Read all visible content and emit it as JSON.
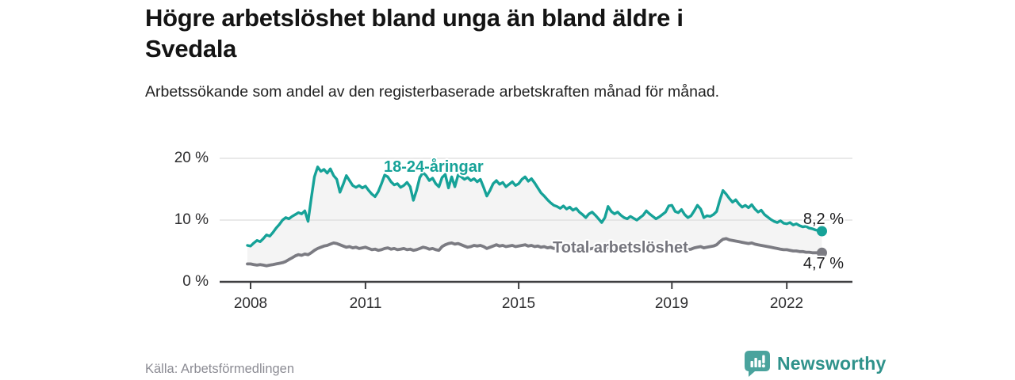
{
  "header": {
    "title": "Högre arbetslöshet bland unga än bland äldre i Svedala",
    "subtitle": "Arbetssökande som andel av den registerbaserade arbetskraften månad för månad."
  },
  "chart_data": {
    "type": "line",
    "title": "Högre arbetslöshet bland unga än bland äldre i Svedala",
    "subtitle": "Arbetssökande som andel av den registerbaserade arbetskraften månad för månad.",
    "x_unit": "month",
    "x_start": "2007-12",
    "x_end": "2022-12",
    "grid": "horizontal",
    "legend_position": "inline-labels",
    "fill_between_color": "#f4f4f4",
    "axis_color": "#3f3f41",
    "gridline_color": "#dcdcdc",
    "x_axis": {
      "ticks": [
        {
          "label": "2008",
          "year": 2008
        },
        {
          "label": "2011",
          "year": 2011
        },
        {
          "label": "2015",
          "year": 2015
        },
        {
          "label": "2019",
          "year": 2019
        },
        {
          "label": "2022",
          "year": 2022
        }
      ]
    },
    "y_axis": {
      "range": [
        0,
        21
      ],
      "ticks": [
        {
          "label": "20 %",
          "value": 20
        },
        {
          "label": "10 %",
          "value": 10
        },
        {
          "label": "0 %",
          "value": 0
        }
      ]
    },
    "series": [
      {
        "name": "18-24-åringar",
        "color": "#16a298",
        "end_label": "8,2 %",
        "end_value": 8.2,
        "values": [
          5.9,
          5.8,
          6.3,
          6.7,
          6.5,
          7.0,
          7.6,
          7.4,
          8.0,
          8.7,
          9.3,
          10.0,
          10.4,
          10.2,
          10.6,
          10.9,
          11.2,
          11.0,
          11.5,
          9.8,
          13.5,
          17.0,
          18.6,
          17.9,
          18.2,
          17.6,
          18.3,
          17.2,
          16.6,
          14.5,
          15.8,
          17.2,
          16.4,
          15.6,
          15.3,
          15.6,
          15.2,
          15.5,
          14.8,
          14.2,
          13.8,
          14.6,
          15.9,
          17.3,
          17.0,
          16.2,
          15.7,
          15.9,
          15.3,
          15.6,
          16.1,
          15.4,
          13.2,
          14.8,
          16.9,
          17.7,
          17.2,
          16.4,
          16.8,
          15.9,
          15.4,
          16.9,
          17.4,
          15.2,
          17.0,
          15.4,
          17.3,
          17.0,
          16.6,
          16.9,
          16.4,
          16.7,
          16.2,
          16.6,
          15.3,
          13.9,
          14.8,
          15.9,
          16.4,
          15.8,
          16.1,
          15.4,
          15.8,
          16.2,
          15.6,
          15.9,
          16.6,
          17.0,
          16.3,
          16.7,
          16.0,
          15.2,
          14.4,
          13.9,
          13.3,
          12.8,
          12.4,
          12.2,
          11.9,
          12.3,
          11.8,
          12.1,
          11.6,
          11.9,
          11.3,
          10.9,
          10.4,
          11.0,
          11.3,
          10.8,
          10.2,
          9.6,
          10.4,
          12.2,
          11.4,
          11.0,
          11.3,
          10.8,
          10.4,
          10.2,
          10.6,
          10.3,
          10.0,
          10.4,
          10.8,
          11.5,
          11.0,
          10.6,
          10.2,
          10.5,
          10.9,
          11.3,
          12.3,
          12.4,
          11.4,
          11.2,
          11.7,
          10.9,
          10.4,
          10.7,
          11.5,
          12.4,
          11.8,
          10.4,
          10.7,
          10.6,
          10.9,
          11.4,
          13.2,
          14.8,
          14.2,
          13.5,
          12.9,
          13.3,
          12.6,
          12.1,
          12.4,
          12.0,
          12.5,
          11.8,
          11.3,
          11.6,
          10.9,
          10.5,
          10.1,
          9.8,
          9.6,
          9.9,
          9.5,
          9.4,
          9.6,
          9.2,
          9.4,
          9.1,
          8.9,
          9.0,
          8.7,
          8.6,
          8.4,
          8.3,
          8.2
        ]
      },
      {
        "name": "Total arbetslöshet",
        "color": "#7b7b82",
        "end_label": "4,7 %",
        "end_value": 4.7,
        "values": [
          2.9,
          2.9,
          2.8,
          2.7,
          2.8,
          2.7,
          2.6,
          2.7,
          2.8,
          2.9,
          3.0,
          3.1,
          3.3,
          3.6,
          3.9,
          4.2,
          4.4,
          4.3,
          4.5,
          4.4,
          4.7,
          5.1,
          5.4,
          5.6,
          5.8,
          5.9,
          6.1,
          6.3,
          6.2,
          6.0,
          5.8,
          5.6,
          5.7,
          5.5,
          5.6,
          5.4,
          5.5,
          5.6,
          5.4,
          5.2,
          5.3,
          5.1,
          5.2,
          5.4,
          5.5,
          5.3,
          5.4,
          5.2,
          5.3,
          5.4,
          5.2,
          5.3,
          5.1,
          5.2,
          5.4,
          5.6,
          5.5,
          5.3,
          5.4,
          5.2,
          5.1,
          5.7,
          6.0,
          6.2,
          6.3,
          6.1,
          6.2,
          6.0,
          5.8,
          5.6,
          5.7,
          5.9,
          5.8,
          5.9,
          5.7,
          5.4,
          5.6,
          5.8,
          6.0,
          5.8,
          5.9,
          5.7,
          5.8,
          5.9,
          5.7,
          5.8,
          5.9,
          6.0,
          5.8,
          5.9,
          5.7,
          5.8,
          5.6,
          5.7,
          5.5,
          5.6,
          5.4,
          5.5,
          5.6,
          5.7,
          5.5,
          5.6,
          5.4,
          5.5,
          5.3,
          5.4,
          5.2,
          5.3,
          5.4,
          5.5,
          5.3,
          5.2,
          5.4,
          5.5,
          5.3,
          5.4,
          5.2,
          5.3,
          5.1,
          5.2,
          5.3,
          5.2,
          5.3,
          5.4,
          5.2,
          5.3,
          5.1,
          5.2,
          5.0,
          5.1,
          5.2,
          5.3,
          5.5,
          5.6,
          5.4,
          5.5,
          5.3,
          5.4,
          5.2,
          5.3,
          5.5,
          5.6,
          5.7,
          5.5,
          5.6,
          5.7,
          5.8,
          6.0,
          6.5,
          6.9,
          7.0,
          6.8,
          6.7,
          6.6,
          6.5,
          6.4,
          6.3,
          6.2,
          6.3,
          6.1,
          6.0,
          5.9,
          5.8,
          5.7,
          5.6,
          5.5,
          5.4,
          5.3,
          5.2,
          5.2,
          5.1,
          5.0,
          5.0,
          4.9,
          4.9,
          4.8,
          4.8,
          4.7,
          4.7,
          4.7,
          4.7
        ]
      }
    ]
  },
  "footer": {
    "source": "Källa: Arbetsförmedlingen",
    "brand_name": "Newsworthy",
    "brand_color": "#2f928b",
    "brand_icon": "newsworthy-bars-speech-bubble-icon"
  }
}
